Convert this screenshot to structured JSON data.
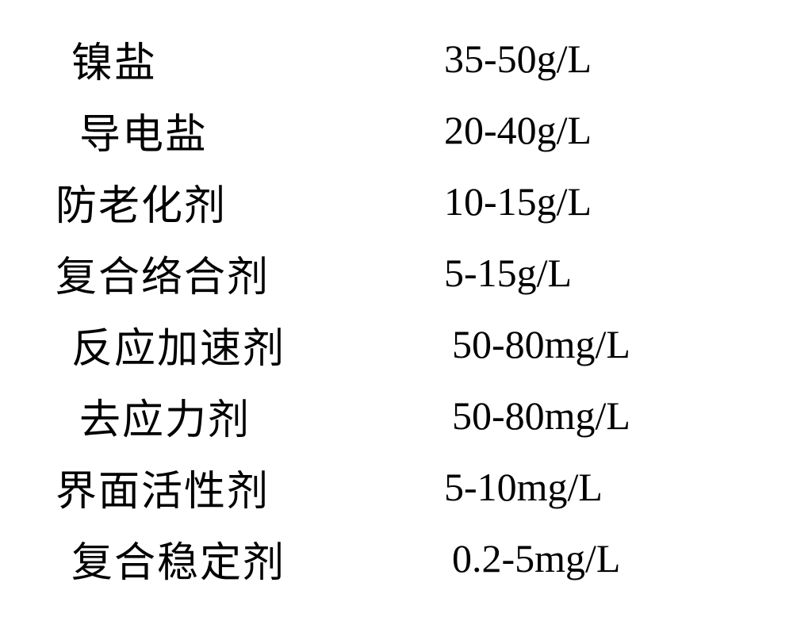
{
  "composition_table": {
    "type": "table",
    "background_color": "#ffffff",
    "text_color": "#000000",
    "label_font": "KaiTi",
    "value_font": "Times New Roman",
    "label_fontsize": 52,
    "value_fontsize": 50,
    "rows": [
      {
        "label": "镍盐",
        "value": "35-50g/L"
      },
      {
        "label": "导电盐",
        "value": "20-40g/L"
      },
      {
        "label": "防老化剂",
        "value": "10-15g/L"
      },
      {
        "label": "复合络合剂",
        "value": "5-15g/L"
      },
      {
        "label": "反应加速剂",
        "value": "50-80mg/L"
      },
      {
        "label": "去应力剂",
        "value": "50-80mg/L"
      },
      {
        "label": "界面活性剂",
        "value": "5-10mg/L"
      },
      {
        "label": "复合稳定剂",
        "value": "0.2-5mg/L"
      }
    ]
  }
}
